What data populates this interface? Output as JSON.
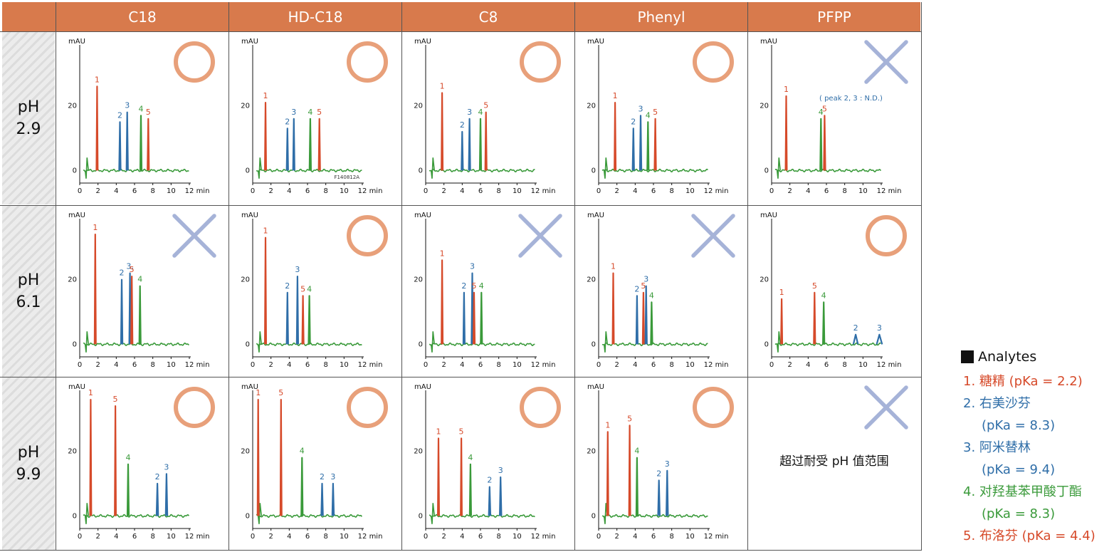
{
  "columns": [
    "C18",
    "HD-C18",
    "C8",
    "Phenyl",
    "PFPP"
  ],
  "rows": [
    {
      "label_top": "pH",
      "label_bottom": "2.9"
    },
    {
      "label_top": "pH",
      "label_bottom": "6.1"
    },
    {
      "label_top": "pH",
      "label_bottom": "9.9"
    }
  ],
  "axis": {
    "y_unit": "mAU",
    "x_unit": "min",
    "y_ticks": [
      "0",
      "20"
    ],
    "x_ticks": [
      "0",
      "2",
      "4",
      "6",
      "8",
      "10",
      "12"
    ],
    "xlim": [
      0,
      12
    ],
    "ylim": [
      -3,
      38
    ]
  },
  "colors": {
    "1": "#d64a2a",
    "2": "#2f6ea8",
    "3": "#2f6ea8",
    "4": "#3a9a3a",
    "5": "#d64a2a",
    "baseline": "#3a9a3a",
    "good": "#e8a07a",
    "bad": "#a6b3d8",
    "header": "#d87a4c"
  },
  "legend": {
    "title": "Analytes",
    "items": [
      {
        "id": "1",
        "lines": [
          "1. 糖精 (pKa = 2.2)"
        ]
      },
      {
        "id": "2",
        "lines": [
          "2. 右美沙芬",
          "(pKa = 8.3)"
        ]
      },
      {
        "id": "3",
        "lines": [
          "3. 阿米替林",
          "(pKa = 9.4)"
        ]
      },
      {
        "id": "4",
        "lines": [
          "4. 对羟基苯甲酸丁酯",
          "(pKa = 8.3)"
        ]
      },
      {
        "id": "5",
        "lines": [
          "5. 布洛芬 (pKa = 4.4)"
        ]
      }
    ]
  },
  "out_of_range_text": "超过耐受 pH 值范围",
  "chart_data": [
    {
      "type": "line",
      "row": "pH 2.9",
      "column": "C18",
      "verdict": "good",
      "peaks": [
        {
          "id": "1",
          "label": "1",
          "x": 1.9,
          "y": 26,
          "w": 0.07
        },
        {
          "id": "2",
          "label": "2",
          "x": 4.4,
          "y": 15,
          "w": 0.08
        },
        {
          "id": "3",
          "label": "3",
          "x": 5.2,
          "y": 18,
          "w": 0.08
        },
        {
          "id": "4",
          "label": "4",
          "x": 6.7,
          "y": 17,
          "w": 0.08
        },
        {
          "id": "5",
          "label": "5",
          "x": 7.5,
          "y": 16,
          "w": 0.08
        }
      ]
    },
    {
      "type": "line",
      "row": "pH 2.9",
      "column": "HD-C18",
      "verdict": "good",
      "annotation": "F140812A",
      "peaks": [
        {
          "id": "1",
          "label": "1",
          "x": 1.4,
          "y": 21,
          "w": 0.07
        },
        {
          "id": "2",
          "label": "2",
          "x": 3.8,
          "y": 13,
          "w": 0.08
        },
        {
          "id": "3",
          "label": "3",
          "x": 4.5,
          "y": 16,
          "w": 0.08
        },
        {
          "id": "4",
          "label": "4",
          "x": 6.3,
          "y": 16,
          "w": 0.08
        },
        {
          "id": "5",
          "label": "5",
          "x": 7.3,
          "y": 16,
          "w": 0.08
        }
      ]
    },
    {
      "type": "line",
      "row": "pH 2.9",
      "column": "C8",
      "verdict": "good",
      "peaks": [
        {
          "id": "1",
          "label": "1",
          "x": 1.8,
          "y": 24,
          "w": 0.07
        },
        {
          "id": "2",
          "label": "2",
          "x": 4.0,
          "y": 12,
          "w": 0.08
        },
        {
          "id": "3",
          "label": "3",
          "x": 4.8,
          "y": 16,
          "w": 0.08
        },
        {
          "id": "4",
          "label": "4",
          "x": 6.0,
          "y": 16,
          "w": 0.08
        },
        {
          "id": "5",
          "label": "5",
          "x": 6.6,
          "y": 18,
          "w": 0.08
        }
      ]
    },
    {
      "type": "line",
      "row": "pH 2.9",
      "column": "Phenyl",
      "verdict": "good",
      "peaks": [
        {
          "id": "1",
          "label": "1",
          "x": 1.8,
          "y": 21,
          "w": 0.07
        },
        {
          "id": "2",
          "label": "2",
          "x": 3.8,
          "y": 13,
          "w": 0.08
        },
        {
          "id": "3",
          "label": "3",
          "x": 4.6,
          "y": 17,
          "w": 0.08
        },
        {
          "id": "4",
          "label": "4",
          "x": 5.4,
          "y": 15,
          "w": 0.08
        },
        {
          "id": "5",
          "label": "5",
          "x": 6.2,
          "y": 16,
          "w": 0.08
        }
      ]
    },
    {
      "type": "line",
      "row": "pH 2.9",
      "column": "PFPP",
      "verdict": "bad",
      "annotation": "( peak 2, 3 : N.D.)",
      "peaks": [
        {
          "id": "1",
          "label": "1",
          "x": 1.6,
          "y": 23,
          "w": 0.07
        },
        {
          "id": "4",
          "label": "4",
          "x": 5.4,
          "y": 16,
          "w": 0.08
        },
        {
          "id": "5",
          "label": "5",
          "x": 5.8,
          "y": 17,
          "w": 0.08
        }
      ]
    },
    {
      "type": "line",
      "row": "pH 6.1",
      "column": "C18",
      "verdict": "bad",
      "peaks": [
        {
          "id": "1",
          "label": "1",
          "x": 1.7,
          "y": 34,
          "w": 0.07
        },
        {
          "id": "2",
          "label": "2",
          "x": 4.6,
          "y": 20,
          "w": 0.08
        },
        {
          "id": "3",
          "label": "3,",
          "x": 5.5,
          "y": 22,
          "w": 0.08
        },
        {
          "id": "5",
          "label": "5",
          "x": 5.7,
          "y": 21,
          "w": 0.08
        },
        {
          "id": "4",
          "label": "4",
          "x": 6.6,
          "y": 18,
          "w": 0.08
        }
      ]
    },
    {
      "type": "line",
      "row": "pH 6.1",
      "column": "HD-C18",
      "verdict": "good",
      "peaks": [
        {
          "id": "1",
          "label": "1",
          "x": 1.4,
          "y": 33,
          "w": 0.07
        },
        {
          "id": "2",
          "label": "2",
          "x": 3.8,
          "y": 16,
          "w": 0.08
        },
        {
          "id": "3",
          "label": "3",
          "x": 4.9,
          "y": 21,
          "w": 0.08
        },
        {
          "id": "5",
          "label": "5",
          "x": 5.5,
          "y": 15,
          "w": 0.08
        },
        {
          "id": "4",
          "label": "4",
          "x": 6.2,
          "y": 15,
          "w": 0.08
        }
      ]
    },
    {
      "type": "line",
      "row": "pH 6.1",
      "column": "C8",
      "verdict": "bad",
      "peaks": [
        {
          "id": "1",
          "label": "1",
          "x": 1.8,
          "y": 26,
          "w": 0.07
        },
        {
          "id": "2",
          "label": "2",
          "x": 4.2,
          "y": 16,
          "w": 0.08
        },
        {
          "id": "3",
          "label": "3",
          "x": 5.1,
          "y": 22,
          "w": 0.08
        },
        {
          "id": "5",
          "label": "5",
          "x": 5.3,
          "y": 16,
          "w": 0.08
        },
        {
          "id": "4",
          "label": "4",
          "x": 6.1,
          "y": 16,
          "w": 0.08
        }
      ]
    },
    {
      "type": "line",
      "row": "pH 6.1",
      "column": "Phenyl",
      "verdict": "bad",
      "peaks": [
        {
          "id": "1",
          "label": "1",
          "x": 1.6,
          "y": 22,
          "w": 0.07
        },
        {
          "id": "2",
          "label": "2",
          "x": 4.2,
          "y": 15,
          "w": 0.08
        },
        {
          "id": "5",
          "label": "5",
          "x": 4.9,
          "y": 16,
          "w": 0.08
        },
        {
          "id": "3",
          "label": "3",
          "x": 5.2,
          "y": 18,
          "w": 0.08
        },
        {
          "id": "4",
          "label": "4",
          "x": 5.8,
          "y": 13,
          "w": 0.08
        }
      ]
    },
    {
      "type": "line",
      "row": "pH 6.1",
      "column": "PFPP",
      "verdict": "good",
      "peaks": [
        {
          "id": "1",
          "label": "1",
          "x": 1.1,
          "y": 14,
          "w": 0.07
        },
        {
          "id": "5",
          "label": "5",
          "x": 4.7,
          "y": 16,
          "w": 0.08
        },
        {
          "id": "4",
          "label": "4",
          "x": 5.7,
          "y": 13,
          "w": 0.08
        },
        {
          "id": "2",
          "label": "2",
          "x": 9.2,
          "y": 3,
          "w": 0.25
        },
        {
          "id": "3",
          "label": "3",
          "x": 11.8,
          "y": 3,
          "w": 0.3
        }
      ]
    },
    {
      "type": "line",
      "row": "pH 9.9",
      "column": "C18",
      "verdict": "good",
      "peaks": [
        {
          "id": "1",
          "label": "1",
          "x": 1.2,
          "y": 36,
          "w": 0.07
        },
        {
          "id": "5",
          "label": "5",
          "x": 3.9,
          "y": 34,
          "w": 0.07
        },
        {
          "id": "4",
          "label": "4",
          "x": 5.3,
          "y": 16,
          "w": 0.08
        },
        {
          "id": "2",
          "label": "2",
          "x": 8.5,
          "y": 10,
          "w": 0.09
        },
        {
          "id": "3",
          "label": "3",
          "x": 9.5,
          "y": 13,
          "w": 0.09
        }
      ]
    },
    {
      "type": "line",
      "row": "pH 9.9",
      "column": "HD-C18",
      "verdict": "good",
      "peaks": [
        {
          "id": "1",
          "label": "1",
          "x": 0.6,
          "y": 36,
          "w": 0.07
        },
        {
          "id": "5",
          "label": "5",
          "x": 3.1,
          "y": 36,
          "w": 0.07
        },
        {
          "id": "4",
          "label": "4",
          "x": 5.4,
          "y": 18,
          "w": 0.08
        },
        {
          "id": "2",
          "label": "2",
          "x": 7.6,
          "y": 10,
          "w": 0.09
        },
        {
          "id": "3",
          "label": "3",
          "x": 8.8,
          "y": 10,
          "w": 0.09
        }
      ]
    },
    {
      "type": "line",
      "row": "pH 9.9",
      "column": "C8",
      "verdict": "good",
      "peaks": [
        {
          "id": "1",
          "label": "1",
          "x": 1.4,
          "y": 24,
          "w": 0.07
        },
        {
          "id": "5",
          "label": "5",
          "x": 3.9,
          "y": 24,
          "w": 0.07
        },
        {
          "id": "4",
          "label": "4",
          "x": 4.9,
          "y": 16,
          "w": 0.08
        },
        {
          "id": "2",
          "label": "2",
          "x": 7.0,
          "y": 9,
          "w": 0.09
        },
        {
          "id": "3",
          "label": "3",
          "x": 8.2,
          "y": 12,
          "w": 0.09
        }
      ]
    },
    {
      "type": "line",
      "row": "pH 9.9",
      "column": "Phenyl",
      "verdict": "good",
      "peaks": [
        {
          "id": "1",
          "label": "1",
          "x": 1.0,
          "y": 26,
          "w": 0.07
        },
        {
          "id": "5",
          "label": "5",
          "x": 3.4,
          "y": 28,
          "w": 0.07
        },
        {
          "id": "4",
          "label": "4",
          "x": 4.2,
          "y": 18,
          "w": 0.08
        },
        {
          "id": "2",
          "label": "2",
          "x": 6.6,
          "y": 11,
          "w": 0.09
        },
        {
          "id": "3",
          "label": "3",
          "x": 7.5,
          "y": 14,
          "w": 0.09
        }
      ]
    },
    {
      "type": "none",
      "row": "pH 9.9",
      "column": "PFPP",
      "verdict": "bad",
      "note": "out_of_range_text"
    }
  ]
}
